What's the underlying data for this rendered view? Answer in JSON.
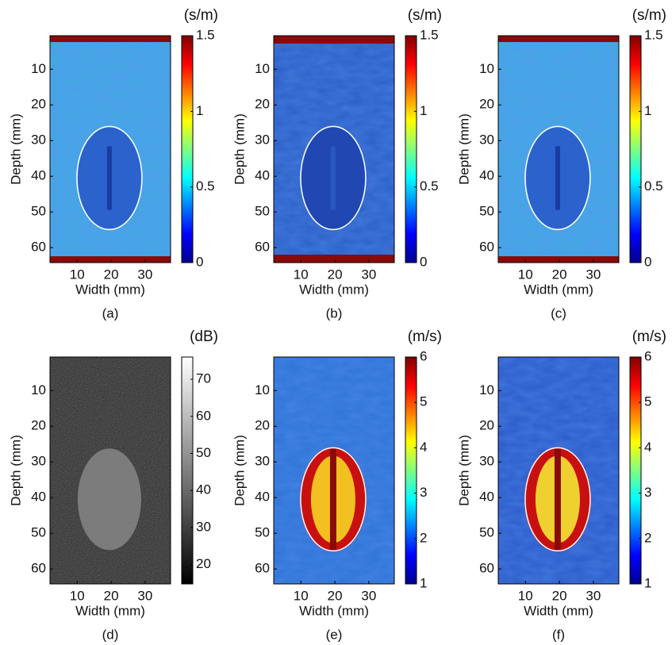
{
  "chart_data": [
    {
      "type": "image",
      "caption": "(a)",
      "colorbar_label": "(s/m)",
      "xlabel": "Width (mm)",
      "ylabel": "Depth (mm)",
      "xlim": [
        2,
        37.5
      ],
      "ylim": [
        0.6,
        64.2
      ],
      "xticks": [
        10,
        20,
        30
      ],
      "yticks": [
        10,
        20,
        30,
        40,
        50,
        60
      ],
      "clim": [
        0,
        1.5
      ],
      "cticks": [
        0,
        0.5,
        1,
        1.5
      ],
      "colormap": "jet"
    },
    {
      "type": "image",
      "caption": "(b)",
      "colorbar_label": "(s/m)",
      "xlabel": "Width (mm)",
      "ylabel": "Depth (mm)",
      "xlim": [
        2,
        37.5
      ],
      "ylim": [
        0.6,
        64.2
      ],
      "xticks": [
        10,
        20,
        30
      ],
      "yticks": [
        10,
        20,
        30,
        40,
        50,
        60
      ],
      "clim": [
        0,
        1.5
      ],
      "cticks": [
        0,
        0.5,
        1,
        1.5
      ],
      "colormap": "jet"
    },
    {
      "type": "image",
      "caption": "(c)",
      "colorbar_label": "(s/m)",
      "xlabel": "Width (mm)",
      "ylabel": "Depth (mm)",
      "xlim": [
        2,
        37.5
      ],
      "ylim": [
        0.6,
        64.2
      ],
      "xticks": [
        10,
        20,
        30
      ],
      "yticks": [
        10,
        20,
        30,
        40,
        50,
        60
      ],
      "clim": [
        0,
        1.5
      ],
      "cticks": [
        0,
        0.5,
        1,
        1.5
      ],
      "colormap": "jet"
    },
    {
      "type": "image",
      "caption": "(d)",
      "colorbar_label": "(dB)",
      "xlabel": "Width (mm)",
      "ylabel": "Depth (mm)",
      "xlim": [
        2,
        37.5
      ],
      "ylim": [
        0.6,
        64.2
      ],
      "xticks": [
        10,
        20,
        30
      ],
      "yticks": [
        10,
        20,
        30,
        40,
        50,
        60
      ],
      "clim": [
        14.8,
        76
      ],
      "cticks": [
        20,
        30,
        40,
        50,
        60,
        70
      ],
      "colormap": "gray"
    },
    {
      "type": "image",
      "caption": "(e)",
      "colorbar_label": "(m/s)",
      "xlabel": "Width (mm)",
      "ylabel": "Depth (mm)",
      "xlim": [
        2,
        37.5
      ],
      "ylim": [
        0.6,
        64.2
      ],
      "xticks": [
        10,
        20,
        30
      ],
      "yticks": [
        10,
        20,
        30,
        40,
        50,
        60
      ],
      "clim": [
        1,
        6
      ],
      "cticks": [
        1,
        2,
        3,
        4,
        5,
        6
      ],
      "colormap": "jet"
    },
    {
      "type": "image",
      "caption": "(f)",
      "colorbar_label": "(m/s)",
      "xlabel": "Width (mm)",
      "ylabel": "Depth (mm)",
      "xlim": [
        2,
        37.5
      ],
      "ylim": [
        0.6,
        64.2
      ],
      "xticks": [
        10,
        20,
        30
      ],
      "yticks": [
        10,
        20,
        30,
        40,
        50,
        60
      ],
      "clim": [
        1,
        6
      ],
      "cticks": [
        1,
        2,
        3,
        4,
        5,
        6
      ],
      "colormap": "jet"
    }
  ]
}
